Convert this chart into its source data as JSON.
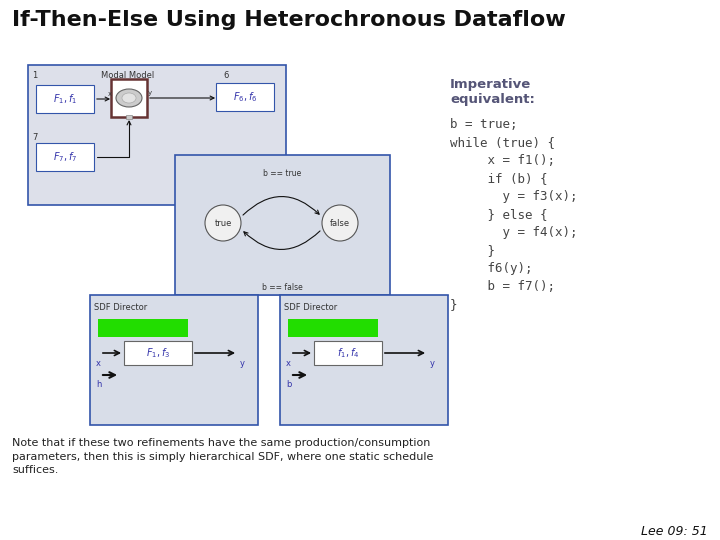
{
  "title": "If-Then-Else Using Heterochronous Dataflow",
  "title_fontsize": 16,
  "title_fontweight": "bold",
  "bg_color": "#ffffff",
  "imperative_label": "Imperative\nequivalent:",
  "code_lines": [
    "b = true;",
    "while (true) {",
    "     x = f1();",
    "     if (b) {",
    "       y = f3(x);",
    "     } else {",
    "       y = f4(x);",
    "     }",
    "     f6(y);",
    "     b = f7();",
    "}"
  ],
  "note_text": "Note that if these two refinements have the same production/consumption\nparameters, then this is simply hierarchical SDF, where one static schedule\nsuffices.",
  "footer_text": "Lee 09: 51",
  "diagram_border": "#3355aa",
  "dark_border": "#663333",
  "green_color": "#22dd00",
  "arrow_color": "#111111",
  "label_color": "#3333aa",
  "text_color": "#333333",
  "imp_color": "#555577",
  "code_color": "#444444"
}
